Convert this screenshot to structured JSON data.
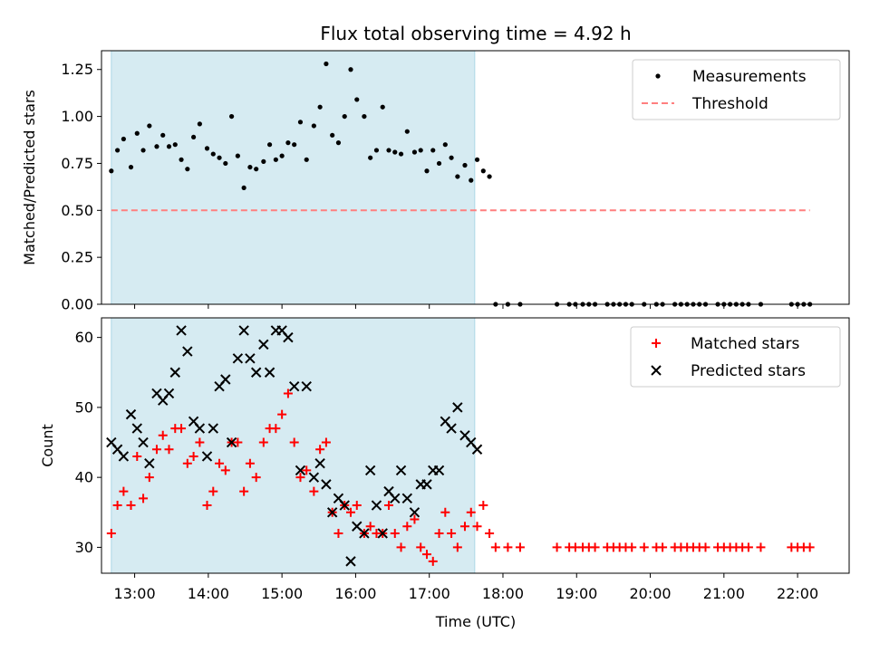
{
  "chart_data": [
    {
      "type": "scatter",
      "title": "Flux total observing time = 4.92 h",
      "xlabel": "",
      "ylabel": "Matched/Predicted stars",
      "xlim": [
        "12:33",
        "22:42"
      ],
      "ylim": [
        0,
        1.35
      ],
      "yticks": [
        0.0,
        0.25,
        0.5,
        0.75,
        1.0,
        1.25
      ],
      "ytick_labels": [
        "0.00",
        "0.25",
        "0.50",
        "0.75",
        "1.00",
        "1.25"
      ],
      "xticks": [
        "13:00",
        "14:00",
        "15:00",
        "16:00",
        "17:00",
        "18:00",
        "19:00",
        "20:00",
        "21:00",
        "22:00"
      ],
      "shaded_span": {
        "start": "12:41",
        "end": "17:37",
        "color": "#add8e6"
      },
      "legend": {
        "position": "top-right",
        "entries": [
          "Measurements",
          "Threshold"
        ]
      },
      "threshold": {
        "name": "Threshold",
        "y": 0.5,
        "x_start": "12:41",
        "x_end": "22:10",
        "color": "#ff7f7f",
        "style": "dashed"
      },
      "series": [
        {
          "name": "Measurements",
          "color": "#000000",
          "x": [
            "12:41",
            "12:46",
            "12:51",
            "12:57",
            "13:02",
            "13:07",
            "13:12",
            "13:18",
            "13:23",
            "13:28",
            "13:33",
            "13:38",
            "13:43",
            "13:48",
            "13:53",
            "13:59",
            "14:04",
            "14:09",
            "14:14",
            "14:19",
            "14:24",
            "14:29",
            "14:34",
            "14:39",
            "14:45",
            "14:50",
            "14:55",
            "15:00",
            "15:05",
            "15:10",
            "15:15",
            "15:20",
            "15:26",
            "15:31",
            "15:36",
            "15:41",
            "15:46",
            "15:51",
            "15:56",
            "16:01",
            "16:07",
            "16:12",
            "16:17",
            "16:22",
            "16:27",
            "16:32",
            "16:37",
            "16:42",
            "16:48",
            "16:53",
            "16:58",
            "17:03",
            "17:08",
            "17:13",
            "17:18",
            "17:23",
            "17:29",
            "17:34",
            "17:39",
            "17:44",
            "17:49",
            "17:54",
            "18:04",
            "18:14",
            "18:44",
            "18:54",
            "18:59",
            "19:05",
            "19:10",
            "19:15",
            "19:25",
            "19:30",
            "19:35",
            "19:40",
            "19:45",
            "19:55",
            "20:05",
            "20:10",
            "20:20",
            "20:25",
            "20:30",
            "20:35",
            "20:40",
            "20:45",
            "20:55",
            "21:00",
            "21:05",
            "21:10",
            "21:15",
            "21:20",
            "21:30",
            "21:55",
            "22:00",
            "22:05",
            "22:10"
          ],
          "y": [
            0.71,
            0.82,
            0.88,
            0.73,
            0.91,
            0.82,
            0.95,
            0.84,
            0.9,
            0.84,
            0.85,
            0.77,
            0.72,
            0.89,
            0.96,
            0.83,
            0.8,
            0.78,
            0.75,
            1.0,
            0.79,
            0.62,
            0.73,
            0.72,
            0.76,
            0.85,
            0.77,
            0.79,
            0.86,
            0.85,
            0.97,
            0.77,
            0.95,
            1.05,
            1.28,
            0.9,
            0.86,
            1.0,
            1.25,
            1.09,
            1.0,
            0.78,
            0.82,
            1.05,
            0.82,
            0.81,
            0.8,
            0.92,
            0.81,
            0.82,
            0.71,
            0.82,
            0.75,
            0.85,
            0.78,
            0.68,
            0.74,
            0.66,
            0.77,
            0.71,
            0.68,
            0,
            0,
            0,
            0,
            0,
            0,
            0,
            0,
            0,
            0,
            0,
            0,
            0,
            0,
            0,
            0,
            0,
            0,
            0,
            0,
            0,
            0,
            0,
            0,
            0,
            0,
            0,
            0,
            0,
            0,
            0,
            0,
            0,
            0
          ]
        }
      ]
    },
    {
      "type": "scatter",
      "title": "",
      "xlabel": "Time (UTC)",
      "ylabel": "Count",
      "xlim": [
        "12:33",
        "22:42"
      ],
      "ylim": [
        26.3,
        62.8
      ],
      "yticks": [
        30,
        40,
        50,
        60
      ],
      "ytick_labels": [
        "30",
        "40",
        "50",
        "60"
      ],
      "xticks": [
        "13:00",
        "14:00",
        "15:00",
        "16:00",
        "17:00",
        "18:00",
        "19:00",
        "20:00",
        "21:00",
        "22:00"
      ],
      "shaded_span": {
        "start": "12:41",
        "end": "17:37",
        "color": "#add8e6"
      },
      "legend": {
        "position": "top-right",
        "entries": [
          "Matched stars",
          "Predicted stars"
        ]
      },
      "series": [
        {
          "name": "Matched stars",
          "marker": "plus",
          "color": "#ff0000",
          "x": [
            "12:41",
            "12:46",
            "12:51",
            "12:57",
            "13:02",
            "13:07",
            "13:12",
            "13:18",
            "13:23",
            "13:28",
            "13:33",
            "13:38",
            "13:43",
            "13:48",
            "13:53",
            "13:59",
            "14:04",
            "14:09",
            "14:14",
            "14:19",
            "14:24",
            "14:29",
            "14:34",
            "14:39",
            "14:45",
            "14:50",
            "14:55",
            "15:00",
            "15:05",
            "15:10",
            "15:15",
            "15:20",
            "15:26",
            "15:31",
            "15:36",
            "15:41",
            "15:46",
            "15:51",
            "15:56",
            "16:01",
            "16:07",
            "16:12",
            "16:17",
            "16:22",
            "16:27",
            "16:32",
            "16:37",
            "16:42",
            "16:48",
            "16:53",
            "16:58",
            "17:03",
            "17:08",
            "17:13",
            "17:18",
            "17:23",
            "17:29",
            "17:34",
            "17:39",
            "17:44",
            "17:49",
            "17:54",
            "18:04",
            "18:14",
            "18:44",
            "18:54",
            "18:59",
            "19:05",
            "19:10",
            "19:15",
            "19:25",
            "19:30",
            "19:35",
            "19:40",
            "19:45",
            "19:55",
            "20:05",
            "20:10",
            "20:20",
            "20:25",
            "20:30",
            "20:35",
            "20:40",
            "20:45",
            "20:55",
            "21:00",
            "21:05",
            "21:10",
            "21:15",
            "21:20",
            "21:30",
            "21:55",
            "22:00",
            "22:05",
            "22:10"
          ],
          "y": [
            32,
            36,
            38,
            36,
            43,
            37,
            40,
            44,
            46,
            44,
            47,
            47,
            42,
            43,
            45,
            36,
            38,
            42,
            41,
            45,
            45,
            38,
            42,
            40,
            45,
            47,
            47,
            49,
            52,
            45,
            40,
            41,
            38,
            44,
            45,
            35,
            32,
            36,
            35,
            36,
            32,
            33,
            32,
            32,
            36,
            32,
            30,
            33,
            34,
            30,
            29,
            28,
            32,
            35,
            32,
            30,
            33,
            35,
            33,
            36,
            32,
            30,
            30,
            30,
            30,
            30,
            30,
            30,
            30,
            30,
            30,
            30,
            30,
            30,
            30,
            30,
            30,
            30,
            30,
            30,
            30,
            30,
            30,
            30,
            30,
            30,
            30,
            30,
            30,
            30,
            30,
            30,
            30,
            30,
            30
          ]
        },
        {
          "name": "Predicted stars",
          "marker": "x",
          "color": "#000000",
          "x": [
            "12:41",
            "12:46",
            "12:51",
            "12:57",
            "13:02",
            "13:07",
            "13:12",
            "13:18",
            "13:23",
            "13:28",
            "13:33",
            "13:38",
            "13:43",
            "13:48",
            "13:53",
            "13:59",
            "14:04",
            "14:09",
            "14:14",
            "14:19",
            "14:24",
            "14:29",
            "14:34",
            "14:39",
            "14:45",
            "14:50",
            "14:55",
            "15:00",
            "15:05",
            "15:10",
            "15:15",
            "15:20",
            "15:26",
            "15:31",
            "15:36",
            "15:41",
            "15:46",
            "15:51",
            "15:56",
            "16:01",
            "16:07",
            "16:12",
            "16:17",
            "16:22",
            "16:27",
            "16:32",
            "16:37",
            "16:42",
            "16:48",
            "16:53",
            "16:58",
            "17:03",
            "17:08",
            "17:13",
            "17:18",
            "17:23",
            "17:29",
            "17:34",
            "17:39"
          ],
          "y": [
            45,
            44,
            43,
            49,
            47,
            45,
            42,
            52,
            51,
            52,
            55,
            61,
            58,
            48,
            47,
            43,
            47,
            53,
            54,
            45,
            57,
            61,
            57,
            55,
            59,
            55,
            61,
            61,
            60,
            53,
            41,
            53,
            40,
            42,
            39,
            35,
            37,
            36,
            28,
            33,
            32,
            41,
            36,
            32,
            38,
            37,
            41,
            37,
            35,
            39,
            39,
            41,
            41,
            48,
            47,
            50,
            46,
            45,
            44
          ]
        }
      ]
    }
  ]
}
